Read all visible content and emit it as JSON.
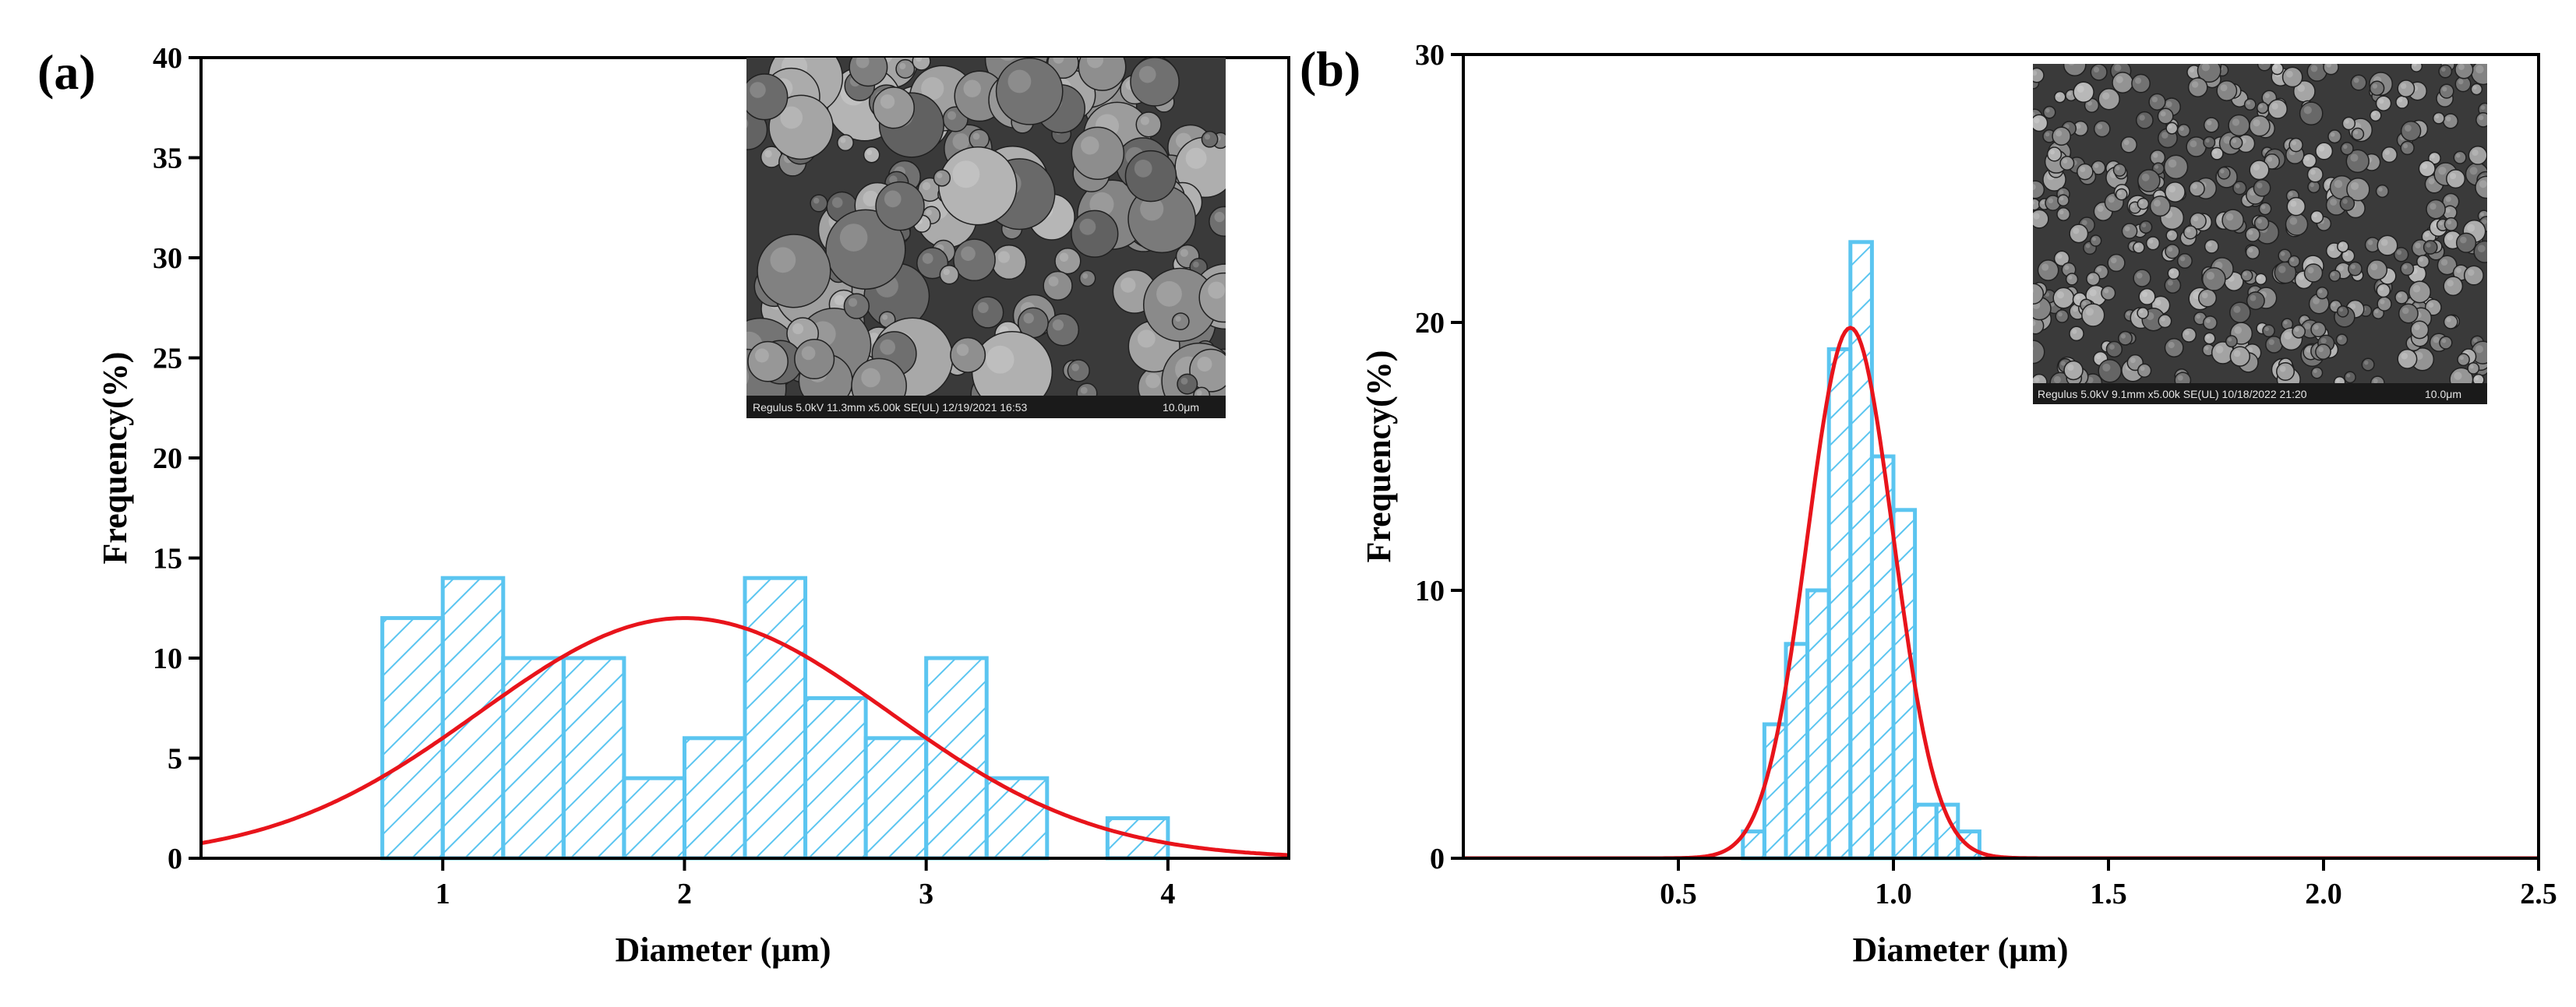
{
  "colors": {
    "bar_stroke": "#5bc5f0",
    "fit_line": "#e8141b",
    "axis": "#000000",
    "sem_background": "#3a3a3a",
    "sem_particle": "#8a8a8a"
  },
  "chart_data": [
    {
      "type": "bar",
      "panel_label": "(a)",
      "title": "",
      "xlabel": "Diameter (μm)",
      "ylabel": "Frequency(%)",
      "xlim": [
        0,
        4.5
      ],
      "ylim": [
        0,
        40
      ],
      "xticks": [
        1,
        2,
        3,
        4
      ],
      "xtick_labels": [
        "1",
        "2",
        "3",
        "4"
      ],
      "yticks": [
        0,
        5,
        10,
        15,
        20,
        25,
        30,
        35,
        40
      ],
      "ytick_labels": [
        "0",
        "5",
        "10",
        "15",
        "20",
        "25",
        "30",
        "35",
        "40"
      ],
      "bin_width": 0.25,
      "bin_starts": [
        0.75,
        1.0,
        1.25,
        1.5,
        1.75,
        2.0,
        2.25,
        2.5,
        2.75,
        3.0,
        3.25,
        3.75
      ],
      "values": [
        12,
        14,
        10,
        10,
        4,
        6,
        14,
        8,
        6,
        10,
        4,
        2
      ],
      "fit": {
        "type": "normal",
        "peak_x": 2.0,
        "peak_y": 12,
        "sigma": 0.85
      },
      "inset": {
        "kind": "SEM micrograph",
        "caption": "Regulus 5.0kV 11.3mm x5.00k SE(UL) 12/19/2021 16:53",
        "scale_bar": "10.0μm"
      }
    },
    {
      "type": "bar",
      "panel_label": "(b)",
      "title": "",
      "xlabel": "Diameter (μm)",
      "ylabel": "Frequency(%)",
      "xlim": [
        0,
        2.5
      ],
      "ylim": [
        0,
        30
      ],
      "xticks": [
        0.5,
        1.0,
        1.5,
        2.0,
        2.5
      ],
      "xtick_labels": [
        "0.5",
        "1.0",
        "1.5",
        "2.0",
        "2.5"
      ],
      "yticks": [
        0,
        10,
        20,
        30
      ],
      "ytick_labels": [
        "0",
        "10",
        "20",
        "30"
      ],
      "bin_width": 0.05,
      "bin_starts": [
        0.65,
        0.7,
        0.75,
        0.8,
        0.85,
        0.9,
        0.95,
        1.0,
        1.05,
        1.1,
        1.15
      ],
      "values": [
        1,
        5,
        8,
        10,
        19,
        23,
        15,
        13,
        2,
        2,
        1
      ],
      "fit": {
        "type": "normal",
        "peak_x": 0.9,
        "peak_y": 19.8,
        "sigma": 0.1
      },
      "inset": {
        "kind": "SEM micrograph",
        "caption": "Regulus 5.0kV 9.1mm x5.00k SE(UL) 10/18/2022 21:20",
        "scale_bar": "10.0μm"
      }
    }
  ]
}
